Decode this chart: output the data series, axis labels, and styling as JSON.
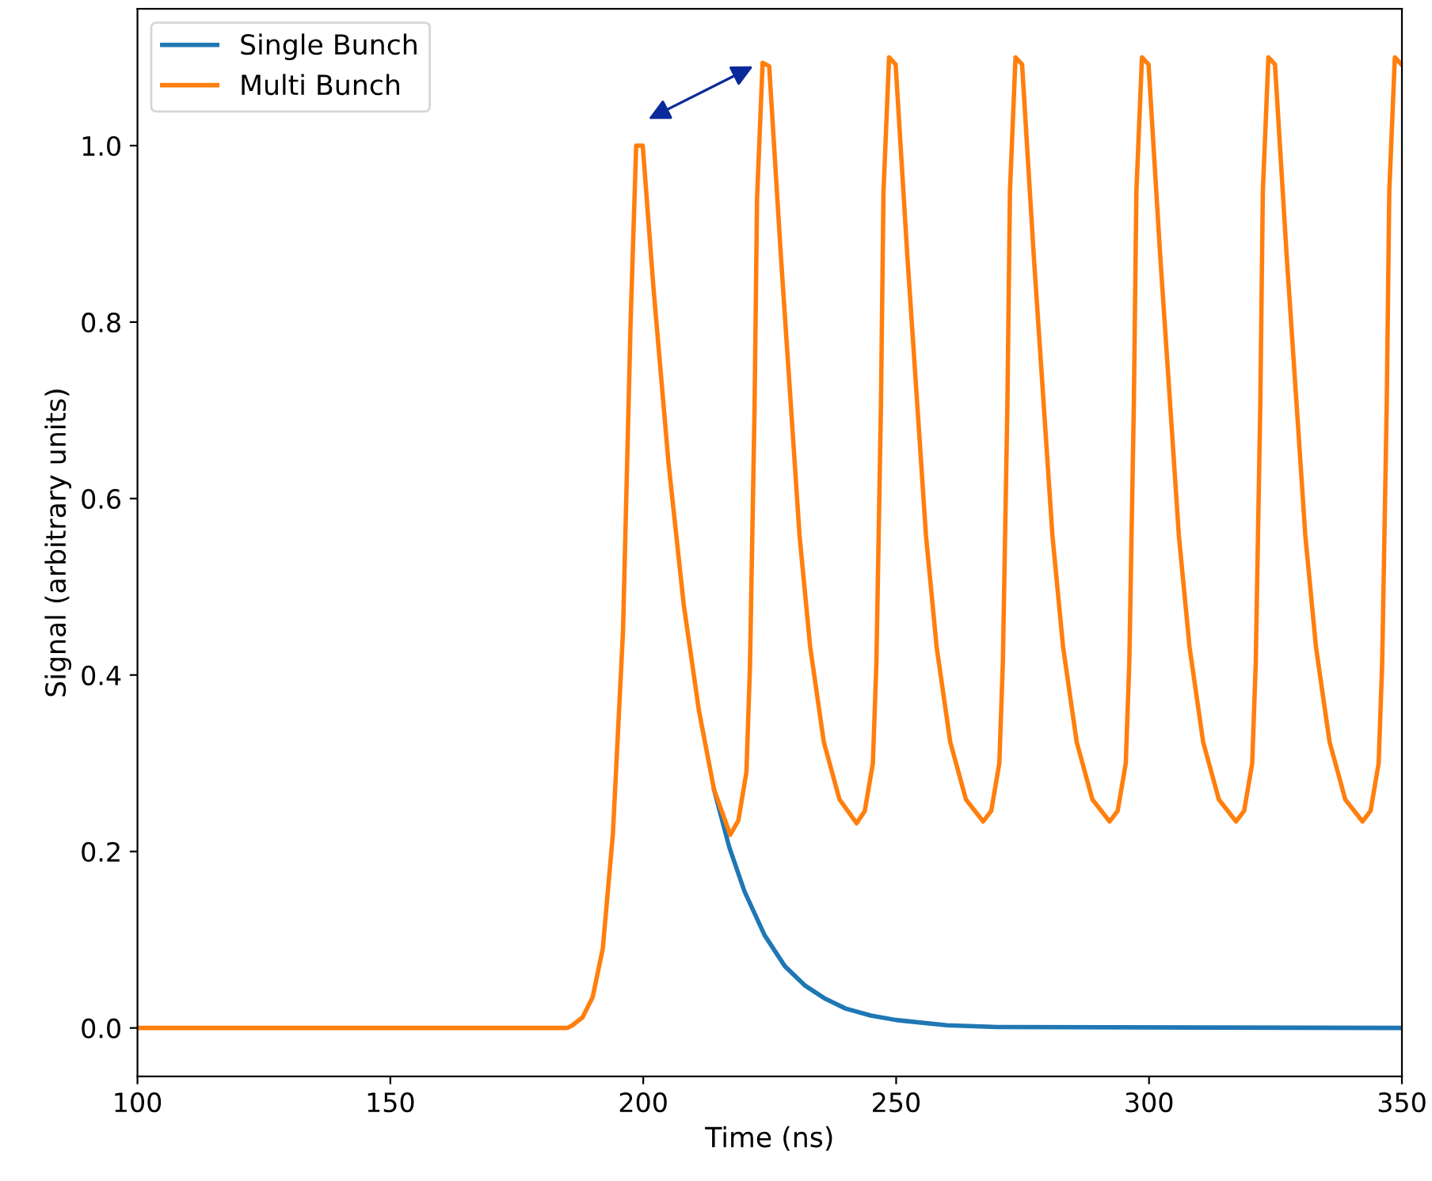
{
  "chart_data": {
    "type": "line",
    "xlabel": "Time (ns)",
    "ylabel": "Signal (arbitrary units)",
    "xlim": [
      100,
      350
    ],
    "xticks": [
      100,
      150,
      200,
      250,
      300,
      350
    ],
    "ylim": [
      -0.055,
      1.155
    ],
    "yticks": [
      {
        "value": 0,
        "label": "0.0"
      },
      {
        "value": 0.2,
        "label": "0.2"
      },
      {
        "value": 0.4,
        "label": "0.4"
      },
      {
        "value": 0.6,
        "label": "0.6"
      },
      {
        "value": 0.8,
        "label": "0.8"
      },
      {
        "value": 1.0,
        "label": "1.0"
      }
    ],
    "grid": false,
    "legend": "top left",
    "line_style": "solid",
    "marker": "none",
    "series": [
      {
        "name": "Single Bunch",
        "color": "#1f77b4",
        "x": [
          214,
          217,
          220,
          224,
          228,
          232,
          236,
          240,
          245,
          250,
          260,
          270,
          350
        ],
        "values": [
          0.27,
          0.205,
          0.155,
          0.105,
          0.07,
          0.048,
          0.033,
          0.022,
          0.014,
          0.009,
          0.003,
          0.001,
          0
        ]
      },
      {
        "name": "Multi Bunch",
        "color": "#ff7f0e",
        "x": [
          100,
          185,
          186,
          188,
          190,
          192,
          194,
          196,
          197.5,
          198.6,
          199.9,
          202,
          205,
          208,
          211,
          214,
          217.2,
          218.8,
          220.4,
          221.1,
          222.0,
          222.5,
          223.6,
          224.9,
          227.2,
          229.3,
          230.9,
          233.0,
          235.7,
          238.8,
          242.2,
          243.8,
          245.4,
          246.1,
          247.0,
          247.5,
          248.6,
          249.9,
          252.2,
          254.3,
          255.9,
          258.0,
          260.7,
          263.8,
          267.2,
          268.8,
          270.4,
          271.1,
          272.0,
          272.5,
          273.6,
          274.9,
          277.2,
          279.3,
          280.9,
          283.0,
          285.7,
          288.8,
          292.2,
          293.8,
          295.4,
          296.1,
          297.0,
          297.5,
          298.6,
          299.9,
          302.2,
          304.3,
          305.9,
          308.0,
          310.7,
          313.8,
          317.2,
          318.8,
          320.4,
          321.1,
          322.0,
          322.5,
          323.6,
          324.9,
          327.2,
          329.3,
          330.9,
          333.0,
          335.7,
          338.8,
          342.2,
          343.8,
          345.4,
          346.1,
          347.0,
          347.5,
          348.6,
          349.9
        ],
        "values": [
          0,
          0,
          0.003,
          0.012,
          0.035,
          0.09,
          0.22,
          0.45,
          0.8,
          1.0,
          1.0,
          0.84,
          0.64,
          0.48,
          0.36,
          0.27,
          0.219,
          0.235,
          0.29,
          0.41,
          0.7,
          0.94,
          1.094,
          1.09,
          0.876,
          0.696,
          0.558,
          0.432,
          0.324,
          0.259,
          0.232,
          0.246,
          0.3,
          0.414,
          0.708,
          0.948,
          1.1,
          1.092,
          0.876,
          0.696,
          0.558,
          0.432,
          0.324,
          0.259,
          0.234,
          0.246,
          0.3,
          0.414,
          0.708,
          0.948,
          1.1,
          1.092,
          0.876,
          0.696,
          0.558,
          0.432,
          0.324,
          0.259,
          0.234,
          0.246,
          0.3,
          0.414,
          0.708,
          0.948,
          1.1,
          1.092,
          0.876,
          0.696,
          0.558,
          0.432,
          0.324,
          0.259,
          0.234,
          0.246,
          0.3,
          0.414,
          0.708,
          0.948,
          1.1,
          1.092,
          0.876,
          0.696,
          0.558,
          0.432,
          0.324,
          0.259,
          0.234,
          0.246,
          0.3,
          0.414,
          0.708,
          0.948,
          1.1,
          1.092
        ]
      }
    ]
  }
}
